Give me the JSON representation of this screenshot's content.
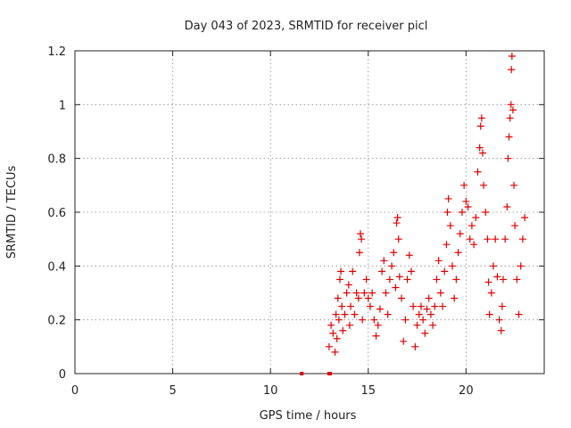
{
  "chart_data": {
    "type": "scatter",
    "title": "Day 043 of 2023, SRMTID for receiver picl",
    "xlabel": "GPS time / hours",
    "ylabel": "SRMTID / TECUs",
    "xlim": [
      0,
      24
    ],
    "ylim": [
      0,
      1.2
    ],
    "x_ticks": [
      0,
      5,
      10,
      15,
      20
    ],
    "x_tick_labels": [
      "0",
      "5",
      "10",
      "15",
      "20"
    ],
    "y_ticks": [
      0,
      0.2,
      0.4,
      0.6,
      0.8,
      1.0,
      1.2
    ],
    "y_tick_labels": [
      "0",
      "0.2",
      "0.4",
      "0.6",
      "0.8",
      "1",
      "1.2"
    ],
    "grid": true,
    "marker": "+",
    "marker_color": "#e00000",
    "series": [
      {
        "name": "SRMTID",
        "points": [
          [
            11.6,
            0.0
          ],
          [
            13.0,
            0.0
          ],
          [
            13.05,
            0.0
          ],
          [
            13.0,
            0.1
          ],
          [
            13.1,
            0.18
          ],
          [
            13.2,
            0.15
          ],
          [
            13.3,
            0.08
          ],
          [
            13.35,
            0.22
          ],
          [
            13.4,
            0.13
          ],
          [
            13.45,
            0.28
          ],
          [
            13.5,
            0.2
          ],
          [
            13.55,
            0.35
          ],
          [
            13.6,
            0.38
          ],
          [
            13.65,
            0.25
          ],
          [
            13.7,
            0.16
          ],
          [
            13.8,
            0.22
          ],
          [
            13.9,
            0.3
          ],
          [
            14.0,
            0.33
          ],
          [
            14.05,
            0.18
          ],
          [
            14.1,
            0.25
          ],
          [
            14.2,
            0.38
          ],
          [
            14.3,
            0.22
          ],
          [
            14.4,
            0.3
          ],
          [
            14.5,
            0.28
          ],
          [
            14.55,
            0.45
          ],
          [
            14.6,
            0.52
          ],
          [
            14.65,
            0.5
          ],
          [
            14.7,
            0.2
          ],
          [
            14.8,
            0.3
          ],
          [
            14.9,
            0.35
          ],
          [
            15.0,
            0.28
          ],
          [
            15.1,
            0.25
          ],
          [
            15.2,
            0.3
          ],
          [
            15.3,
            0.2
          ],
          [
            15.4,
            0.14
          ],
          [
            15.5,
            0.18
          ],
          [
            15.6,
            0.24
          ],
          [
            15.7,
            0.38
          ],
          [
            15.8,
            0.42
          ],
          [
            15.9,
            0.3
          ],
          [
            16.0,
            0.22
          ],
          [
            16.1,
            0.35
          ],
          [
            16.2,
            0.4
          ],
          [
            16.3,
            0.45
          ],
          [
            16.4,
            0.32
          ],
          [
            16.45,
            0.56
          ],
          [
            16.5,
            0.58
          ],
          [
            16.55,
            0.5
          ],
          [
            16.6,
            0.36
          ],
          [
            16.7,
            0.28
          ],
          [
            16.8,
            0.12
          ],
          [
            16.9,
            0.2
          ],
          [
            17.0,
            0.35
          ],
          [
            17.1,
            0.44
          ],
          [
            17.2,
            0.38
          ],
          [
            17.3,
            0.25
          ],
          [
            17.4,
            0.1
          ],
          [
            17.5,
            0.18
          ],
          [
            17.6,
            0.22
          ],
          [
            17.7,
            0.25
          ],
          [
            17.8,
            0.2
          ],
          [
            17.9,
            0.15
          ],
          [
            18.0,
            0.24
          ],
          [
            18.1,
            0.28
          ],
          [
            18.2,
            0.22
          ],
          [
            18.3,
            0.18
          ],
          [
            18.4,
            0.25
          ],
          [
            18.5,
            0.35
          ],
          [
            18.6,
            0.42
          ],
          [
            18.7,
            0.3
          ],
          [
            18.8,
            0.25
          ],
          [
            18.9,
            0.38
          ],
          [
            19.0,
            0.48
          ],
          [
            19.05,
            0.6
          ],
          [
            19.1,
            0.65
          ],
          [
            19.2,
            0.55
          ],
          [
            19.3,
            0.4
          ],
          [
            19.4,
            0.28
          ],
          [
            19.5,
            0.35
          ],
          [
            19.6,
            0.45
          ],
          [
            19.7,
            0.52
          ],
          [
            19.8,
            0.6
          ],
          [
            19.9,
            0.7
          ],
          [
            20.0,
            0.64
          ],
          [
            20.1,
            0.62
          ],
          [
            20.2,
            0.5
          ],
          [
            20.3,
            0.55
          ],
          [
            20.4,
            0.48
          ],
          [
            20.5,
            0.58
          ],
          [
            20.6,
            0.75
          ],
          [
            20.7,
            0.84
          ],
          [
            20.75,
            0.92
          ],
          [
            20.8,
            0.95
          ],
          [
            20.85,
            0.82
          ],
          [
            20.9,
            0.7
          ],
          [
            21.0,
            0.6
          ],
          [
            21.1,
            0.5
          ],
          [
            21.15,
            0.34
          ],
          [
            21.2,
            0.22
          ],
          [
            21.3,
            0.3
          ],
          [
            21.4,
            0.4
          ],
          [
            21.5,
            0.5
          ],
          [
            21.6,
            0.36
          ],
          [
            21.7,
            0.2
          ],
          [
            21.8,
            0.16
          ],
          [
            21.85,
            0.25
          ],
          [
            21.9,
            0.35
          ],
          [
            22.0,
            0.5
          ],
          [
            22.1,
            0.62
          ],
          [
            22.15,
            0.8
          ],
          [
            22.2,
            0.88
          ],
          [
            22.25,
            0.95
          ],
          [
            22.3,
            1.0
          ],
          [
            22.32,
            1.13
          ],
          [
            22.35,
            1.18
          ],
          [
            22.4,
            0.98
          ],
          [
            22.45,
            0.7
          ],
          [
            22.5,
            0.55
          ],
          [
            22.6,
            0.35
          ],
          [
            22.7,
            0.22
          ],
          [
            22.8,
            0.4
          ],
          [
            22.9,
            0.5
          ],
          [
            23.0,
            0.58
          ]
        ]
      }
    ]
  }
}
